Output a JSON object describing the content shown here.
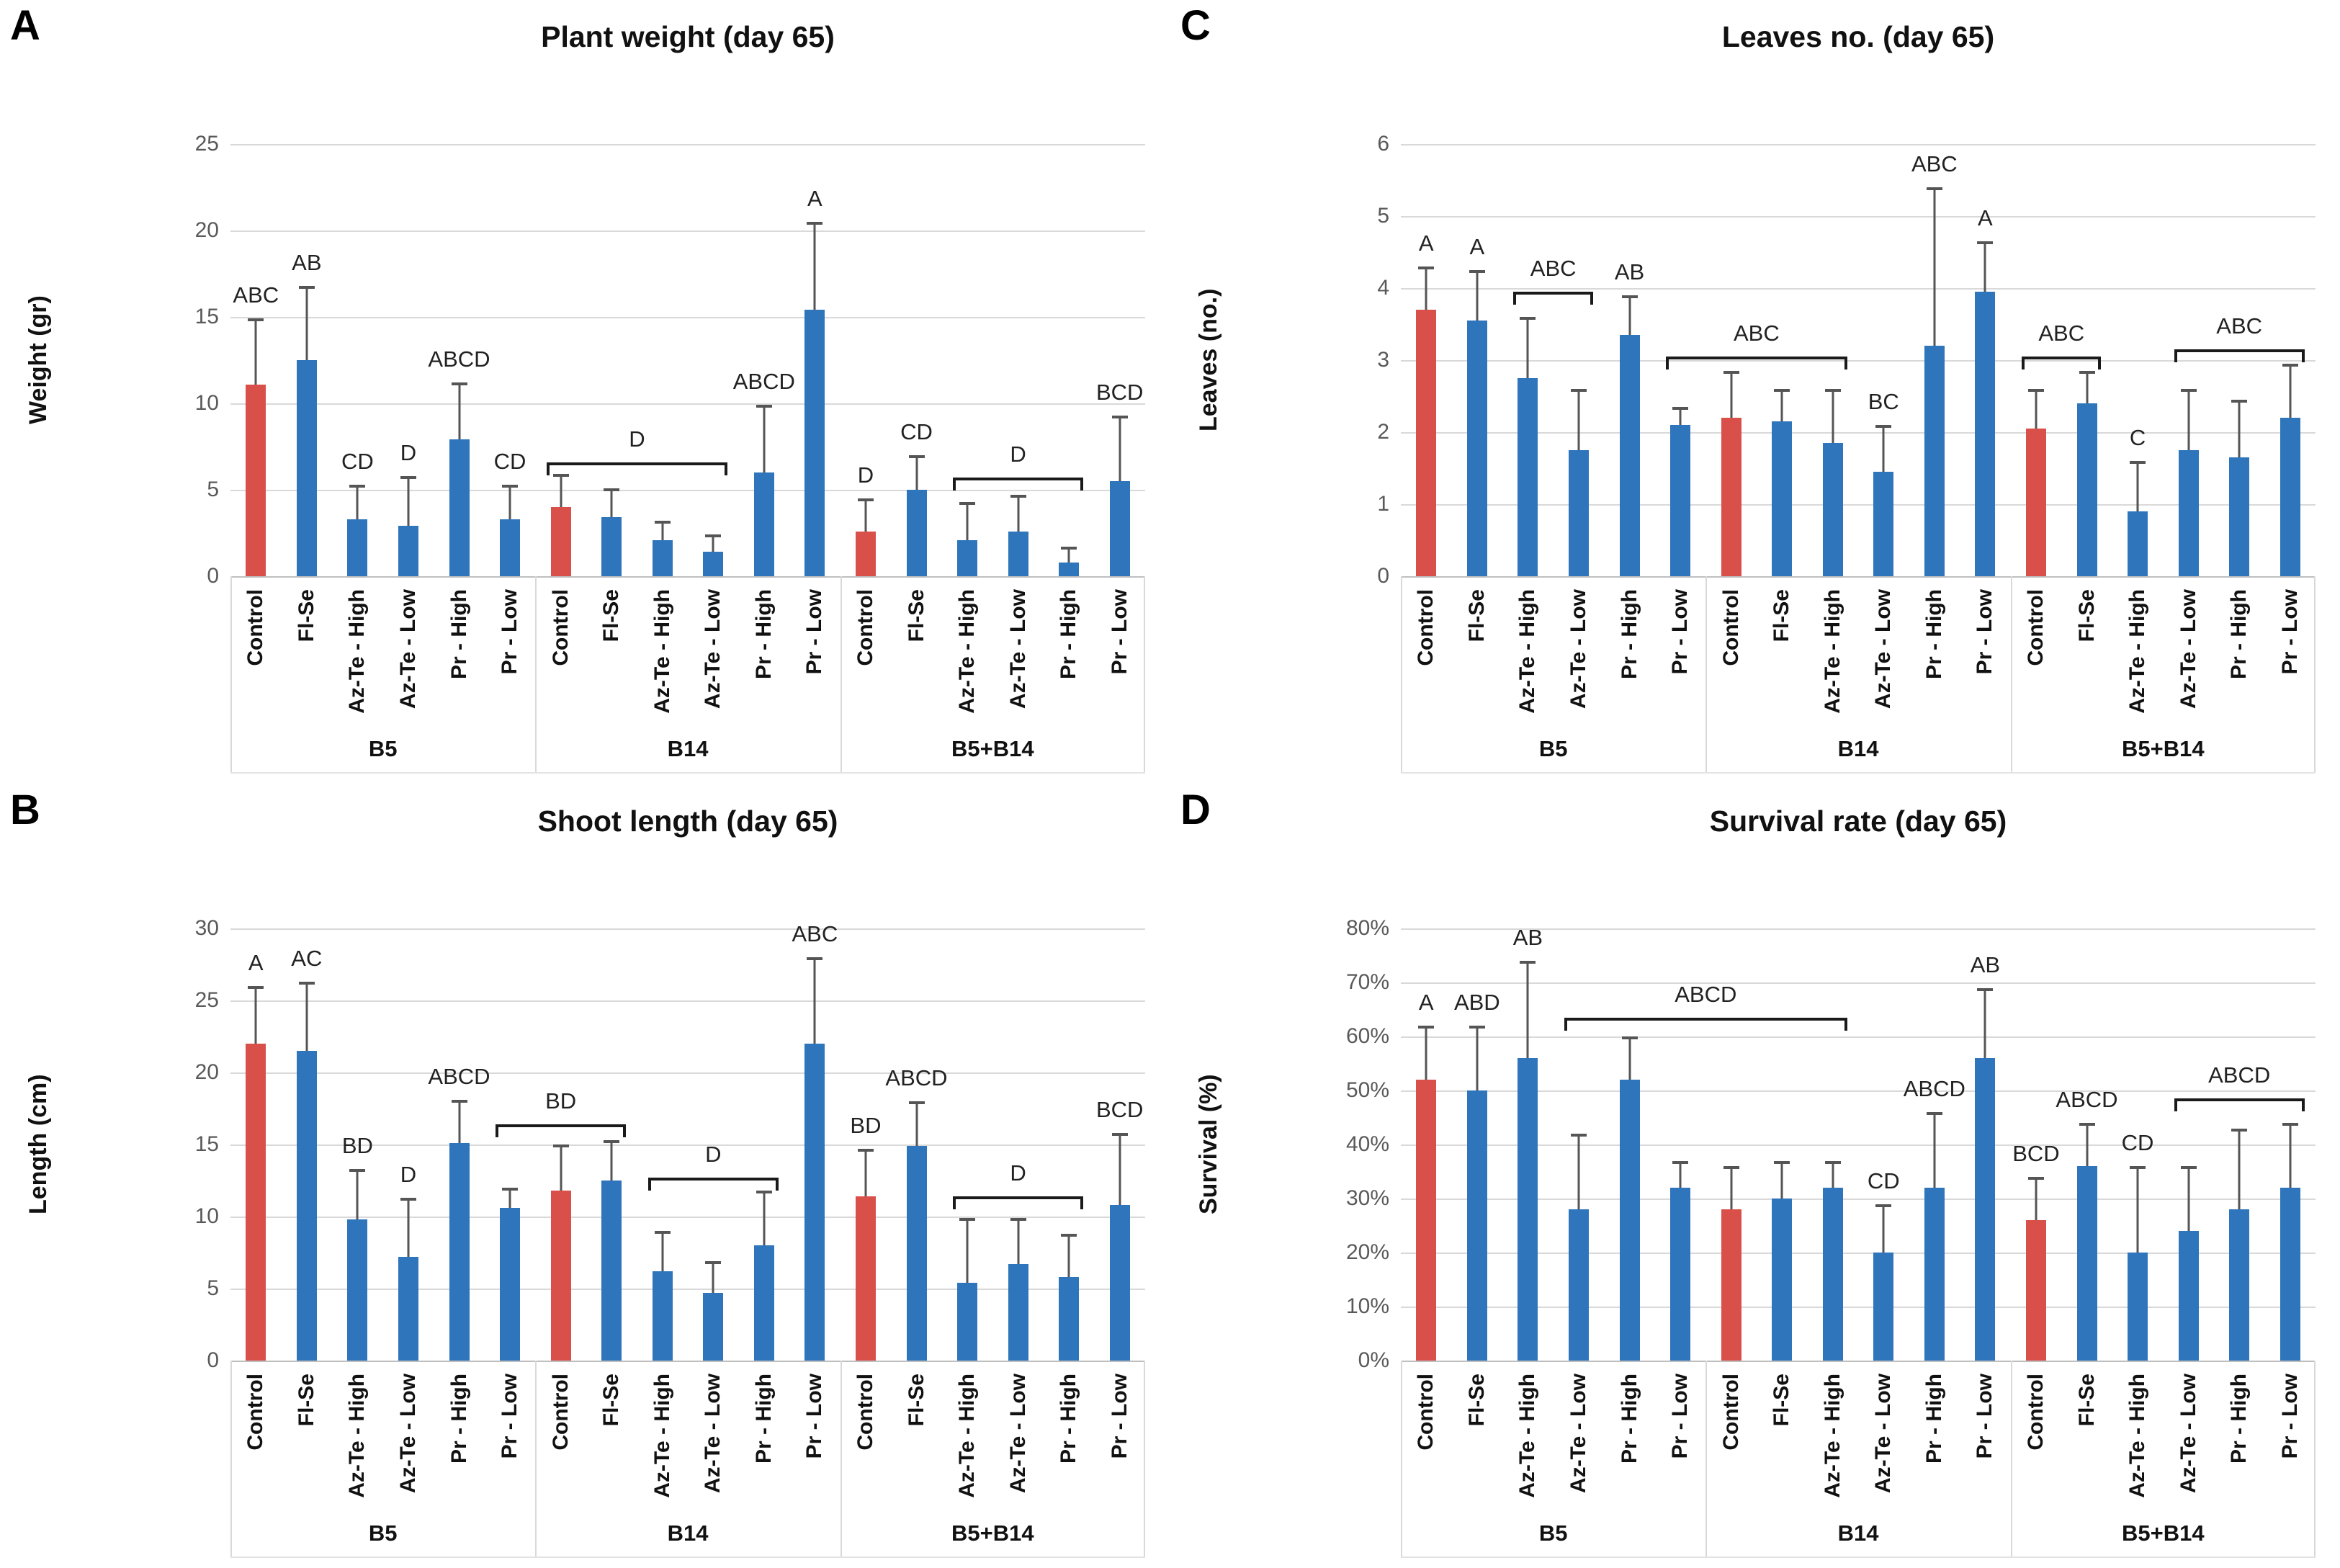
{
  "colors": {
    "control_bar": "#d9504b",
    "treatment_bar": "#2e75bc",
    "error_bar": "#555555",
    "gridline": "#d9d9d9"
  },
  "group_labels": [
    "B5",
    "B14",
    "B5+B14"
  ],
  "treatment_labels": [
    "Control",
    "Fl-Se",
    "Az-Te - High",
    "Az-Te - Low",
    "Pr - High",
    "Pr - Low"
  ],
  "chart_data": [
    {
      "type": "bar",
      "panel_letter": "A",
      "title": "Plant weight (day 65)",
      "ylabel": "Weight (gr)",
      "ylim": [
        0,
        25
      ],
      "ystep": 5,
      "yticks": [
        "0",
        "5",
        "10",
        "15",
        "20",
        "25"
      ],
      "grid": true,
      "legend_position": "none",
      "groups": [
        "B5",
        "B14",
        "B5+B14"
      ],
      "categories": [
        "Control",
        "Fl-Se",
        "Az-Te - High",
        "Az-Te - Low",
        "Pr - High",
        "Pr - Low",
        "Control",
        "Fl-Se",
        "Az-Te - High",
        "Az-Te - Low",
        "Pr - High",
        "Pr - Low",
        "Control",
        "Fl-Se",
        "Az-Te - High",
        "Az-Te - Low",
        "Pr - High",
        "Pr - Low"
      ],
      "bars": [
        {
          "group": "B5",
          "label": "Control",
          "value": 11.1,
          "err_top": 14.9,
          "letter": "ABC",
          "control": true
        },
        {
          "group": "B5",
          "label": "Fl-Se",
          "value": 12.5,
          "err_top": 16.8,
          "letter": "AB",
          "control": false
        },
        {
          "group": "B5",
          "label": "Az-Te - High",
          "value": 3.3,
          "err_top": 5.3,
          "letter": "CD",
          "control": false
        },
        {
          "group": "B5",
          "label": "Az-Te - Low",
          "value": 2.9,
          "err_top": 5.8,
          "letter": "D",
          "control": false
        },
        {
          "group": "B5",
          "label": "Pr - High",
          "value": 7.9,
          "err_top": 11.2,
          "letter": "ABCD",
          "control": false
        },
        {
          "group": "B5",
          "label": "Pr - Low",
          "value": 3.3,
          "err_top": 5.3,
          "letter": "CD",
          "control": false
        },
        {
          "group": "B14",
          "label": "Control",
          "value": 4.0,
          "err_top": 5.9,
          "letter": "",
          "control": true
        },
        {
          "group": "B14",
          "label": "Fl-Se",
          "value": 3.4,
          "err_top": 5.1,
          "letter": "",
          "control": false
        },
        {
          "group": "B14",
          "label": "Az-Te - High",
          "value": 2.1,
          "err_top": 3.2,
          "letter": "",
          "control": false
        },
        {
          "group": "B14",
          "label": "Az-Te - Low",
          "value": 1.4,
          "err_top": 2.4,
          "letter": "",
          "control": false
        },
        {
          "group": "B14",
          "label": "Pr - High",
          "value": 6.0,
          "err_top": 9.9,
          "letter": "ABCD",
          "control": false
        },
        {
          "group": "B14",
          "label": "Pr - Low",
          "value": 15.4,
          "err_top": 20.5,
          "letter": "A",
          "control": false
        },
        {
          "group": "B5+B14",
          "label": "Control",
          "value": 2.6,
          "err_top": 4.5,
          "letter": "D",
          "control": true
        },
        {
          "group": "B5+B14",
          "label": "Fl-Se",
          "value": 5.0,
          "err_top": 7.0,
          "letter": "CD",
          "control": false
        },
        {
          "group": "B5+B14",
          "label": "Az-Te - High",
          "value": 2.1,
          "err_top": 4.3,
          "letter": "",
          "control": false
        },
        {
          "group": "B5+B14",
          "label": "Az-Te - Low",
          "value": 2.6,
          "err_top": 4.7,
          "letter": "",
          "control": false
        },
        {
          "group": "B5+B14",
          "label": "Pr - High",
          "value": 0.8,
          "err_top": 1.7,
          "letter": "",
          "control": false
        },
        {
          "group": "B5+B14",
          "label": "Pr - Low",
          "value": 5.5,
          "err_top": 9.3,
          "letter": "BCD",
          "control": false
        }
      ],
      "brackets": [
        {
          "from": 6,
          "to": 9,
          "label": "D",
          "y": 6.6
        },
        {
          "from": 14,
          "to": 16,
          "label": "D",
          "y": 5.7
        }
      ]
    },
    {
      "type": "bar",
      "panel_letter": "B",
      "title": "Shoot length (day 65)",
      "ylabel": "Length (cm)",
      "ylim": [
        0,
        30
      ],
      "ystep": 5,
      "yticks": [
        "0",
        "5",
        "10",
        "15",
        "20",
        "25",
        "30"
      ],
      "grid": true,
      "legend_position": "none",
      "groups": [
        "B5",
        "B14",
        "B5+B14"
      ],
      "categories": [
        "Control",
        "Fl-Se",
        "Az-Te - High",
        "Az-Te - Low",
        "Pr - High",
        "Pr - Low",
        "Control",
        "Fl-Se",
        "Az-Te - High",
        "Az-Te - Low",
        "Pr - High",
        "Pr - Low",
        "Control",
        "Fl-Se",
        "Az-Te - High",
        "Az-Te - Low",
        "Pr - High",
        "Pr - Low"
      ],
      "bars": [
        {
          "group": "B5",
          "label": "Control",
          "value": 22.0,
          "err_top": 26.0,
          "letter": "A",
          "control": true
        },
        {
          "group": "B5",
          "label": "Fl-Se",
          "value": 21.5,
          "err_top": 26.3,
          "letter": "AC",
          "control": false
        },
        {
          "group": "B5",
          "label": "Az-Te - High",
          "value": 9.8,
          "err_top": 13.3,
          "letter": "BD",
          "control": false
        },
        {
          "group": "B5",
          "label": "Az-Te - Low",
          "value": 7.2,
          "err_top": 11.3,
          "letter": "D",
          "control": false
        },
        {
          "group": "B5",
          "label": "Pr - High",
          "value": 15.1,
          "err_top": 18.1,
          "letter": "ABCD",
          "control": false
        },
        {
          "group": "B5",
          "label": "Pr - Low",
          "value": 10.6,
          "err_top": 12.0,
          "letter": "",
          "control": false
        },
        {
          "group": "B14",
          "label": "Control",
          "value": 11.8,
          "err_top": 15.0,
          "letter": "",
          "control": true
        },
        {
          "group": "B14",
          "label": "Fl-Se",
          "value": 12.5,
          "err_top": 15.3,
          "letter": "",
          "control": false
        },
        {
          "group": "B14",
          "label": "Az-Te - High",
          "value": 6.2,
          "err_top": 9.0,
          "letter": "",
          "control": false
        },
        {
          "group": "B14",
          "label": "Az-Te - Low",
          "value": 4.7,
          "err_top": 6.9,
          "letter": "",
          "control": false
        },
        {
          "group": "B14",
          "label": "Pr - High",
          "value": 8.0,
          "err_top": 11.8,
          "letter": "",
          "control": false
        },
        {
          "group": "B14",
          "label": "Pr - Low",
          "value": 22.0,
          "err_top": 28.0,
          "letter": "ABC",
          "control": false
        },
        {
          "group": "B5+B14",
          "label": "Control",
          "value": 11.4,
          "err_top": 14.7,
          "letter": "BD",
          "control": true
        },
        {
          "group": "B5+B14",
          "label": "Fl-Se",
          "value": 14.9,
          "err_top": 18.0,
          "letter": "ABCD",
          "control": false
        },
        {
          "group": "B5+B14",
          "label": "Az-Te - High",
          "value": 5.4,
          "err_top": 9.9,
          "letter": "",
          "control": false
        },
        {
          "group": "B5+B14",
          "label": "Az-Te - Low",
          "value": 6.7,
          "err_top": 9.9,
          "letter": "",
          "control": false
        },
        {
          "group": "B5+B14",
          "label": "Pr - High",
          "value": 5.8,
          "err_top": 8.8,
          "letter": "",
          "control": false
        },
        {
          "group": "B5+B14",
          "label": "Pr - Low",
          "value": 10.8,
          "err_top": 15.8,
          "letter": "BCD",
          "control": false
        }
      ],
      "brackets": [
        {
          "from": 5,
          "to": 7,
          "label": "BD",
          "y": 16.4
        },
        {
          "from": 8,
          "to": 10,
          "label": "D",
          "y": 12.7
        },
        {
          "from": 14,
          "to": 16,
          "label": "D",
          "y": 11.4
        }
      ]
    },
    {
      "type": "bar",
      "panel_letter": "C",
      "title": "Leaves no. (day 65)",
      "ylabel": "Leaves (no.)",
      "ylim": [
        0,
        6
      ],
      "ystep": 1,
      "yticks": [
        "0",
        "1",
        "2",
        "3",
        "4",
        "5",
        "6"
      ],
      "grid": true,
      "legend_position": "none",
      "groups": [
        "B5",
        "B14",
        "B5+B14"
      ],
      "categories": [
        "Control",
        "Fl-Se",
        "Az-Te - High",
        "Az-Te - Low",
        "Pr - High",
        "Pr - Low",
        "Control",
        "Fl-Se",
        "Az-Te - High",
        "Az-Te - Low",
        "Pr - High",
        "Pr - Low",
        "Control",
        "Fl-Se",
        "Az-Te - High",
        "Az-Te - Low",
        "Pr - High",
        "Pr - Low"
      ],
      "bars": [
        {
          "group": "B5",
          "label": "Control",
          "value": 3.7,
          "err_top": 4.3,
          "letter": "A",
          "control": true
        },
        {
          "group": "B5",
          "label": "Fl-Se",
          "value": 3.55,
          "err_top": 4.25,
          "letter": "A",
          "control": false
        },
        {
          "group": "B5",
          "label": "Az-Te - High",
          "value": 2.75,
          "err_top": 3.6,
          "letter": "",
          "control": false
        },
        {
          "group": "B5",
          "label": "Az-Te - Low",
          "value": 1.75,
          "err_top": 2.6,
          "letter": "",
          "control": false
        },
        {
          "group": "B5",
          "label": "Pr - High",
          "value": 3.35,
          "err_top": 3.9,
          "letter": "AB",
          "control": false
        },
        {
          "group": "B5",
          "label": "Pr - Low",
          "value": 2.1,
          "err_top": 2.35,
          "letter": "",
          "control": false
        },
        {
          "group": "B14",
          "label": "Control",
          "value": 2.2,
          "err_top": 2.85,
          "letter": "",
          "control": true
        },
        {
          "group": "B14",
          "label": "Fl-Se",
          "value": 2.15,
          "err_top": 2.6,
          "letter": "",
          "control": false
        },
        {
          "group": "B14",
          "label": "Az-Te - High",
          "value": 1.85,
          "err_top": 2.6,
          "letter": "",
          "control": false
        },
        {
          "group": "B14",
          "label": "Az-Te - Low",
          "value": 1.45,
          "err_top": 2.1,
          "letter": "BC",
          "control": false
        },
        {
          "group": "B14",
          "label": "Pr - High",
          "value": 3.2,
          "err_top": 5.4,
          "letter": "ABC",
          "control": false
        },
        {
          "group": "B14",
          "label": "Pr - Low",
          "value": 3.95,
          "err_top": 4.65,
          "letter": "A",
          "control": false
        },
        {
          "group": "B5+B14",
          "label": "Control",
          "value": 2.05,
          "err_top": 2.6,
          "letter": "",
          "control": true
        },
        {
          "group": "B5+B14",
          "label": "Fl-Se",
          "value": 2.4,
          "err_top": 2.85,
          "letter": "",
          "control": false
        },
        {
          "group": "B5+B14",
          "label": "Az-Te - High",
          "value": 0.9,
          "err_top": 1.6,
          "letter": "C",
          "control": false
        },
        {
          "group": "B5+B14",
          "label": "Az-Te - Low",
          "value": 1.75,
          "err_top": 2.6,
          "letter": "",
          "control": false
        },
        {
          "group": "B5+B14",
          "label": "Pr - High",
          "value": 1.65,
          "err_top": 2.45,
          "letter": "",
          "control": false
        },
        {
          "group": "B5+B14",
          "label": "Pr - Low",
          "value": 2.2,
          "err_top": 2.95,
          "letter": "",
          "control": false
        }
      ],
      "brackets": [
        {
          "from": 2,
          "to": 3,
          "label": "ABC",
          "y": 3.95
        },
        {
          "from": 5,
          "to": 8,
          "label": "ABC",
          "y": 3.05
        },
        {
          "from": 12,
          "to": 13,
          "label": "ABC",
          "y": 3.05
        },
        {
          "from": 15,
          "to": 17,
          "label": "ABC",
          "y": 3.15
        }
      ]
    },
    {
      "type": "bar",
      "panel_letter": "D",
      "title": "Survival rate (day 65)",
      "ylabel": "Survival (%)",
      "ylim": [
        0,
        80
      ],
      "ystep": 10,
      "yticks": [
        "0%",
        "10%",
        "20%",
        "30%",
        "40%",
        "50%",
        "60%",
        "70%",
        "80%"
      ],
      "grid": true,
      "legend_position": "none",
      "groups": [
        "B5",
        "B14",
        "B5+B14"
      ],
      "categories": [
        "Control",
        "Fl-Se",
        "Az-Te - High",
        "Az-Te - Low",
        "Pr - High",
        "Pr - Low",
        "Control",
        "Fl-Se",
        "Az-Te - High",
        "Az-Te - Low",
        "Pr - High",
        "Pr - Low",
        "Control",
        "Fl-Se",
        "Az-Te - High",
        "Az-Te - Low",
        "Pr - High",
        "Pr - Low"
      ],
      "bars": [
        {
          "group": "B5",
          "label": "Control",
          "value": 52,
          "err_top": 62,
          "letter": "A",
          "control": true
        },
        {
          "group": "B5",
          "label": "Fl-Se",
          "value": 50,
          "err_top": 62,
          "letter": "ABD",
          "control": false
        },
        {
          "group": "B5",
          "label": "Az-Te - High",
          "value": 56,
          "err_top": 74,
          "letter": "AB",
          "control": false
        },
        {
          "group": "B5",
          "label": "Az-Te - Low",
          "value": 28,
          "err_top": 42,
          "letter": "",
          "control": false
        },
        {
          "group": "B5",
          "label": "Pr - High",
          "value": 52,
          "err_top": 60,
          "letter": "",
          "control": false
        },
        {
          "group": "B5",
          "label": "Pr - Low",
          "value": 32,
          "err_top": 37,
          "letter": "",
          "control": false
        },
        {
          "group": "B14",
          "label": "Control",
          "value": 28,
          "err_top": 36,
          "letter": "",
          "control": true
        },
        {
          "group": "B14",
          "label": "Fl-Se",
          "value": 30,
          "err_top": 37,
          "letter": "",
          "control": false
        },
        {
          "group": "B14",
          "label": "Az-Te - High",
          "value": 32,
          "err_top": 37,
          "letter": "",
          "control": false
        },
        {
          "group": "B14",
          "label": "Az-Te - Low",
          "value": 20,
          "err_top": 29,
          "letter": "CD",
          "control": false
        },
        {
          "group": "B14",
          "label": "Pr - High",
          "value": 32,
          "err_top": 46,
          "letter": "ABCD",
          "control": false
        },
        {
          "group": "B14",
          "label": "Pr - Low",
          "value": 56,
          "err_top": 69,
          "letter": "AB",
          "control": false
        },
        {
          "group": "B5+B14",
          "label": "Control",
          "value": 26,
          "err_top": 34,
          "letter": "BCD",
          "control": true
        },
        {
          "group": "B5+B14",
          "label": "Fl-Se",
          "value": 36,
          "err_top": 44,
          "letter": "ABCD",
          "control": false
        },
        {
          "group": "B5+B14",
          "label": "Az-Te - High",
          "value": 20,
          "err_top": 36,
          "letter": "CD",
          "control": false
        },
        {
          "group": "B5+B14",
          "label": "Az-Te - Low",
          "value": 24,
          "err_top": 36,
          "letter": "",
          "control": false
        },
        {
          "group": "B5+B14",
          "label": "Pr - High",
          "value": 28,
          "err_top": 43,
          "letter": "",
          "control": false
        },
        {
          "group": "B5+B14",
          "label": "Pr - Low",
          "value": 32,
          "err_top": 44,
          "letter": "",
          "control": false
        }
      ],
      "brackets": [
        {
          "from": 3,
          "to": 8,
          "label": "ABCD",
          "y": 63.5
        },
        {
          "from": 15,
          "to": 17,
          "label": "ABCD",
          "y": 48.5
        }
      ]
    }
  ]
}
